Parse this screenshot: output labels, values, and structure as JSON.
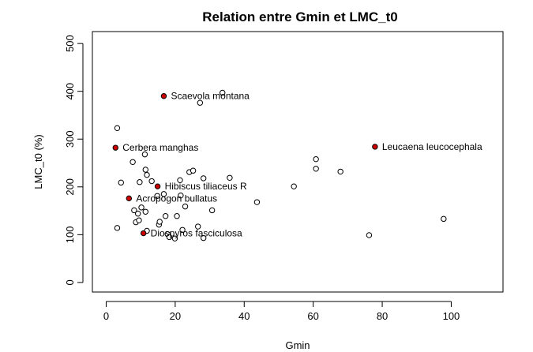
{
  "chart_data": {
    "type": "scatter",
    "title": "Relation entre Gmin et LMC_t0",
    "xlabel": "Gmin",
    "ylabel": "LMC_t0 (%)",
    "xlim": [
      -4,
      115
    ],
    "ylim": [
      -20,
      525
    ],
    "xticks": [
      0,
      20,
      40,
      60,
      80,
      100
    ],
    "yticks": [
      0,
      100,
      200,
      300,
      400,
      500
    ],
    "xtick_labels": [
      "0",
      "20",
      "40",
      "60",
      "80",
      "100"
    ],
    "ytick_labels": [
      "0",
      "100",
      "200",
      "300",
      "400",
      "500"
    ],
    "grid": false,
    "colors": {
      "highlight": "#cc0000",
      "point_stroke": "#000000",
      "open_fill": "#ffffff"
    },
    "points": [
      {
        "x": 3.2,
        "y": 323
      },
      {
        "x": 3.2,
        "y": 114
      },
      {
        "x": 4.3,
        "y": 209
      },
      {
        "x": 7.7,
        "y": 252
      },
      {
        "x": 8.1,
        "y": 151
      },
      {
        "x": 8.6,
        "y": 126
      },
      {
        "x": 9.2,
        "y": 144
      },
      {
        "x": 9.5,
        "y": 130
      },
      {
        "x": 9.7,
        "y": 210
      },
      {
        "x": 10.2,
        "y": 157
      },
      {
        "x": 11.2,
        "y": 268
      },
      {
        "x": 11.4,
        "y": 236
      },
      {
        "x": 11.4,
        "y": 148
      },
      {
        "x": 11.8,
        "y": 225
      },
      {
        "x": 11.8,
        "y": 108
      },
      {
        "x": 13.2,
        "y": 212
      },
      {
        "x": 14.8,
        "y": 181
      },
      {
        "x": 15.3,
        "y": 121
      },
      {
        "x": 15.5,
        "y": 127
      },
      {
        "x": 16.7,
        "y": 185
      },
      {
        "x": 17.2,
        "y": 139
      },
      {
        "x": 17.8,
        "y": 101
      },
      {
        "x": 18.3,
        "y": 95
      },
      {
        "x": 19.9,
        "y": 92
      },
      {
        "x": 20.5,
        "y": 139
      },
      {
        "x": 21.4,
        "y": 214
      },
      {
        "x": 21.6,
        "y": 182
      },
      {
        "x": 22.1,
        "y": 110
      },
      {
        "x": 22.9,
        "y": 159
      },
      {
        "x": 24.1,
        "y": 231
      },
      {
        "x": 25.2,
        "y": 234
      },
      {
        "x": 26.6,
        "y": 117
      },
      {
        "x": 27.2,
        "y": 376
      },
      {
        "x": 28.2,
        "y": 218
      },
      {
        "x": 28.2,
        "y": 93
      },
      {
        "x": 30.7,
        "y": 151
      },
      {
        "x": 33.7,
        "y": 397
      },
      {
        "x": 35.8,
        "y": 219
      },
      {
        "x": 43.7,
        "y": 168
      },
      {
        "x": 54.4,
        "y": 201
      },
      {
        "x": 60.8,
        "y": 258
      },
      {
        "x": 60.8,
        "y": 238
      },
      {
        "x": 67.9,
        "y": 232
      },
      {
        "x": 76.2,
        "y": 99
      },
      {
        "x": 97.8,
        "y": 133
      }
    ],
    "highlighted": [
      {
        "x": 16.7,
        "y": 390,
        "label": "Scaevola montana",
        "label_side": "right"
      },
      {
        "x": 2.7,
        "y": 282,
        "label": "Cerbera manghas",
        "label_side": "right"
      },
      {
        "x": 77.9,
        "y": 284,
        "label": "Leucaena leucocephala",
        "label_side": "right"
      },
      {
        "x": 14.9,
        "y": 201,
        "label": "Hibiscus tiliaceus R",
        "label_side": "right"
      },
      {
        "x": 6.6,
        "y": 176,
        "label": "Acropogon bullatus",
        "label_side": "right"
      },
      {
        "x": 10.8,
        "y": 103,
        "label": "Diospyros fasciculosa",
        "label_side": "right"
      }
    ]
  }
}
